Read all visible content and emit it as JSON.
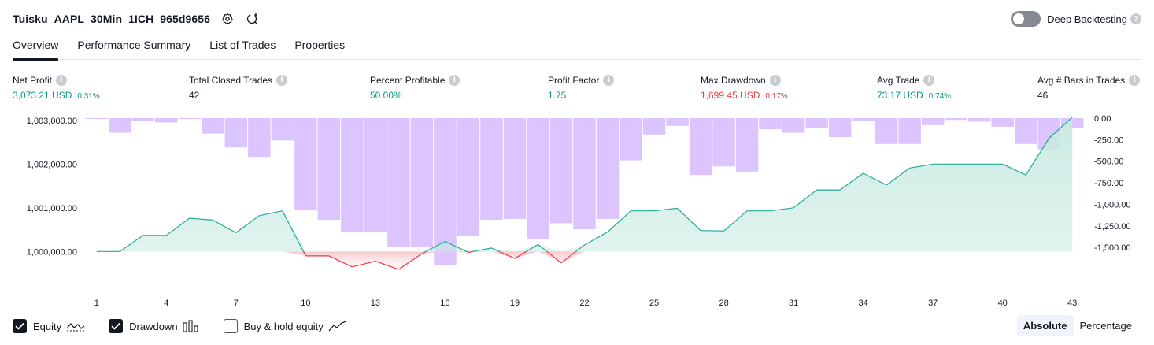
{
  "header": {
    "title": "Tuisku_AAPL_30Min_1ICH_965d9656",
    "deep_backtesting_label": "Deep Backtesting",
    "deep_backtesting_on": false
  },
  "tabs": [
    {
      "label": "Overview",
      "active": true
    },
    {
      "label": "Performance Summary",
      "active": false
    },
    {
      "label": "List of Trades",
      "active": false
    },
    {
      "label": "Properties",
      "active": false
    }
  ],
  "metrics": {
    "net_profit": {
      "label": "Net Profit",
      "value": "3,073.21 USD",
      "pct": "0.31%"
    },
    "total_closed_trades": {
      "label": "Total Closed Trades",
      "value": "42"
    },
    "percent_profitable": {
      "label": "Percent Profitable",
      "value": "50.00%"
    },
    "profit_factor": {
      "label": "Profit Factor",
      "value": "1.75"
    },
    "max_drawdown": {
      "label": "Max Drawdown",
      "value": "1,699.45 USD",
      "pct": "0.17%"
    },
    "avg_trade": {
      "label": "Avg Trade",
      "value": "73.17 USD",
      "pct": "0.74%"
    },
    "avg_bars": {
      "label": "Avg # Bars in Trades",
      "value": "46"
    }
  },
  "legend": {
    "equity": {
      "label": "Equity",
      "checked": true
    },
    "drawdown": {
      "label": "Drawdown",
      "checked": true
    },
    "buy_hold": {
      "label": "Buy & hold equity",
      "checked": false
    }
  },
  "mode": {
    "absolute": "Absolute",
    "percentage": "Percentage",
    "selected": "Absolute"
  },
  "colors": {
    "equity_line": "#22ab94",
    "equity_fill": "#c8eae2",
    "equity_below_line": "#f23645",
    "drawdown_bar": "#dcc5ff",
    "positive": "#089981",
    "negative": "#f23645"
  },
  "chart_data": {
    "type": "line",
    "xlabel": "",
    "ylabel": "",
    "x_ticks": [
      1,
      4,
      7,
      10,
      13,
      16,
      19,
      22,
      25,
      28,
      31,
      34,
      37,
      40,
      43
    ],
    "left_axis": {
      "range": [
        999700,
        1003050
      ],
      "ticks": [
        1000000,
        1001000,
        1002000,
        1003000
      ],
      "tick_labels": [
        "1,000,000.00",
        "1,001,000.00",
        "1,002,000.00",
        "1,003,000.00"
      ]
    },
    "right_axis": {
      "range": [
        -1700,
        0
      ],
      "ticks": [
        0,
        -250,
        -500,
        -750,
        -1000,
        -1250,
        -1500
      ],
      "tick_labels": [
        "0.00",
        "-250.00",
        "-500.00",
        "-750.00",
        "-1,000.00",
        "-1,250.00",
        "-1,500.00"
      ]
    },
    "series": [
      {
        "axis": "left",
        "x": [
          1,
          2,
          3,
          4,
          5,
          6,
          7,
          8,
          9,
          10,
          11,
          12,
          13,
          14,
          15,
          16,
          17,
          18,
          19,
          20,
          21,
          22,
          23,
          24,
          25,
          26,
          27,
          28,
          29,
          30,
          31,
          32,
          33,
          34,
          35,
          36,
          37,
          38,
          39,
          40,
          41,
          42,
          43
        ],
        "values": [
          1000000,
          1000000,
          1000370,
          1000370,
          1000760,
          1000720,
          1000430,
          1000820,
          1000930,
          999900,
          999900,
          999650,
          999780,
          999590,
          999950,
          1000230,
          999980,
          1000080,
          999840,
          1000160,
          999740,
          1000150,
          1000450,
          1000930,
          1000930,
          1000990,
          1000480,
          1000470,
          1000930,
          1000930,
          1001000,
          1001410,
          1001410,
          1001790,
          1001520,
          1001910,
          1002000,
          1002000,
          1002000,
          1002000,
          1001750,
          1002590,
          1003070
        ]
      },
      {
        "axis": "right",
        "x": [
          1,
          2,
          3,
          4,
          5,
          6,
          7,
          8,
          9,
          10,
          11,
          12,
          13,
          14,
          15,
          16,
          17,
          18,
          19,
          20,
          21,
          22,
          23,
          24,
          25,
          26,
          27,
          28,
          29,
          30,
          31,
          32,
          33,
          34,
          35,
          36,
          37,
          38,
          39,
          40,
          41,
          42,
          43
        ],
        "values": [
          -10,
          -170,
          -30,
          -50,
          -10,
          -180,
          -340,
          -450,
          -260,
          -1070,
          -1180,
          -1320,
          -1320,
          -1490,
          -1500,
          -1700,
          -1370,
          -1180,
          -1170,
          -1400,
          -1220,
          -1290,
          -1170,
          -490,
          -190,
          -90,
          -660,
          -560,
          -620,
          -130,
          -170,
          -110,
          -220,
          -30,
          -300,
          -300,
          -80,
          -20,
          -40,
          -100,
          -300,
          -360,
          -110
        ]
      }
    ]
  }
}
